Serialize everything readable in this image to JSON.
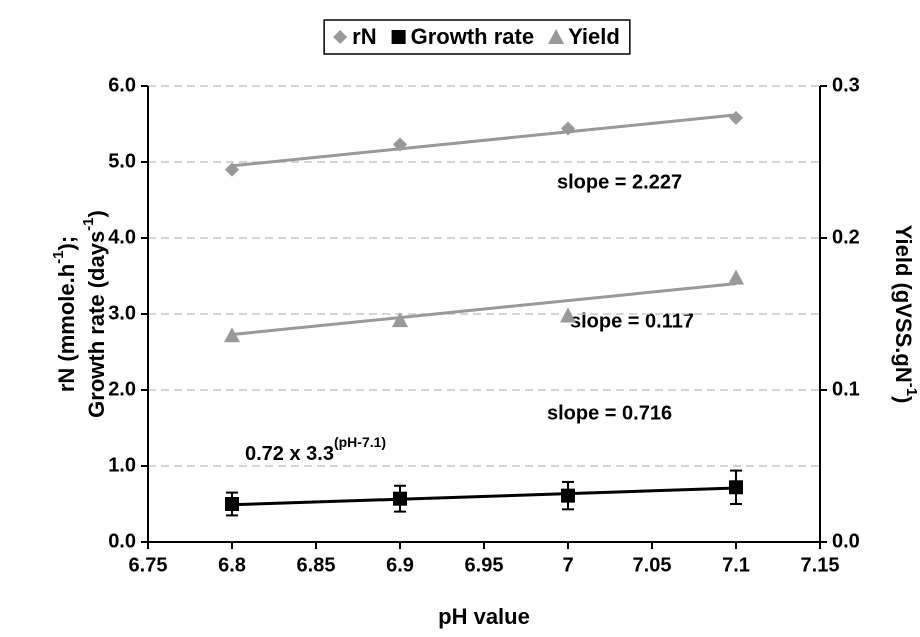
{
  "chart_data": {
    "type": "line",
    "x": [
      6.8,
      6.9,
      7.0,
      7.1
    ],
    "series": [
      {
        "name": "rN",
        "color": "#999999",
        "marker": "diamond",
        "values": [
          4.9,
          5.23,
          5.44,
          5.58
        ],
        "trend": [
          4.95,
          5.62
        ]
      },
      {
        "name": "Growth rate",
        "color": "#000000",
        "marker": "square",
        "values": [
          0.5,
          0.57,
          0.61,
          0.72
        ],
        "errors": [
          0.15,
          0.17,
          0.18,
          0.22
        ],
        "trend": [
          0.49,
          0.71
        ]
      },
      {
        "name": "Yield",
        "color": "#999999",
        "marker": "triangle",
        "axis": "y2",
        "values": [
          0.136,
          0.146,
          0.149,
          0.174
        ],
        "trend": [
          0.1365,
          0.17
        ]
      }
    ],
    "xlim": [
      6.75,
      7.15
    ],
    "xticks": [
      6.75,
      6.8,
      6.85,
      6.9,
      6.95,
      7,
      7.05,
      7.1,
      7.15
    ],
    "ylim": [
      0,
      6
    ],
    "yticks": [
      {
        "value": 0,
        "label": "0.0"
      },
      {
        "value": 1,
        "label": "1.0"
      },
      {
        "value": 2,
        "label": "2.0"
      },
      {
        "value": 3,
        "label": "3.0"
      },
      {
        "value": 4,
        "label": "4.0"
      },
      {
        "value": 5,
        "label": "5.0"
      },
      {
        "value": 6,
        "label": "6.0"
      }
    ],
    "y2lim": [
      0,
      0.3
    ],
    "y2ticks": [
      {
        "value": 0,
        "label": "0.0"
      },
      0.1,
      0.2,
      0.3
    ],
    "grid": true,
    "legend": "top",
    "x_label": "pH value",
    "y_label": [
      [
        "rN (mmole.h",
        "-1",
        ");"
      ],
      [
        "Growth rate (days",
        "-1",
        ")"
      ]
    ],
    "y2_label": [
      "Yield (gVSS.gN",
      "-1",
      ")"
    ],
    "annotations": [
      "slope = 2.227",
      "slope = 0.117",
      "slope = 0.716",
      [
        "0.72 x 3.3",
        "(pH-7.1)"
      ]
    ]
  }
}
